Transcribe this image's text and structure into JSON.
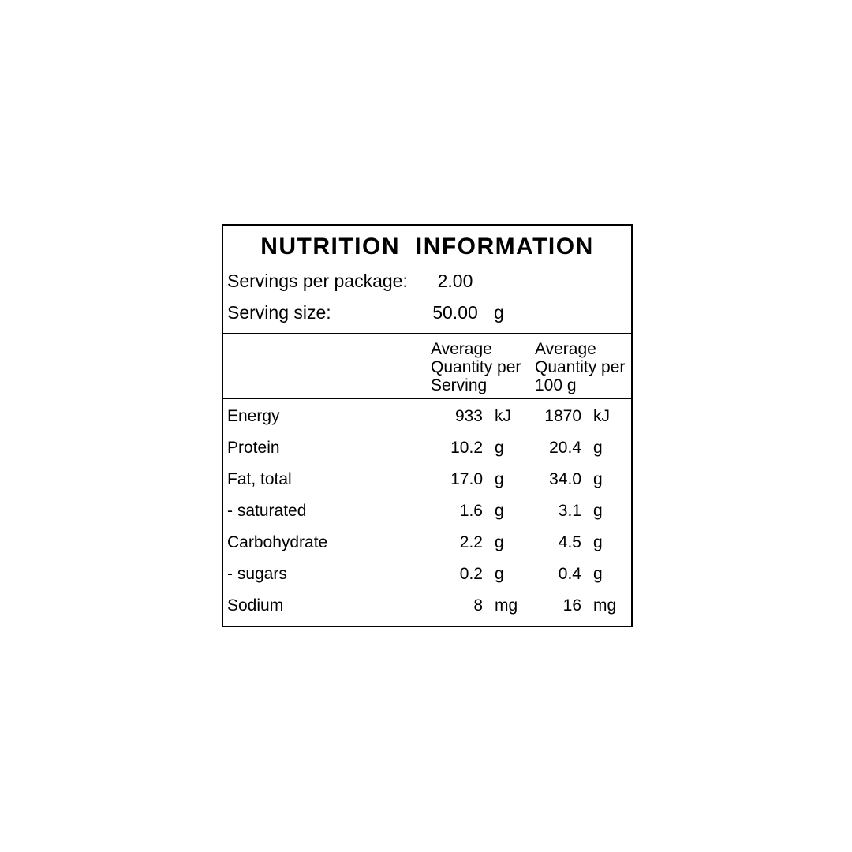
{
  "panel": {
    "title": "NUTRITION INFORMATION",
    "servings_per_package": {
      "label": "Servings per package:",
      "value": "2.00",
      "unit": ""
    },
    "serving_size": {
      "label": "Serving size:",
      "value": "50.00",
      "unit": "g"
    },
    "column_headers": {
      "per_serving": {
        "lines": [
          "Average",
          "Quantity per",
          "Serving"
        ]
      },
      "per_100g": {
        "lines": [
          "Average",
          "Quantity per",
          "100 g"
        ]
      }
    },
    "nutrients": [
      {
        "name": "Energy",
        "per_serving": "933",
        "per_serving_unit": "kJ",
        "per_100g": "1870",
        "per_100g_unit": "kJ"
      },
      {
        "name": "Protein",
        "per_serving": "10.2",
        "per_serving_unit": "g",
        "per_100g": "20.4",
        "per_100g_unit": "g"
      },
      {
        "name": "Fat, total",
        "per_serving": "17.0",
        "per_serving_unit": "g",
        "per_100g": "34.0",
        "per_100g_unit": "g"
      },
      {
        "name": "- saturated",
        "per_serving": "1.6",
        "per_serving_unit": "g",
        "per_100g": "3.1",
        "per_100g_unit": "g"
      },
      {
        "name": "Carbohydrate",
        "per_serving": "2.2",
        "per_serving_unit": "g",
        "per_100g": "4.5",
        "per_100g_unit": "g"
      },
      {
        "name": "- sugars",
        "per_serving": "0.2",
        "per_serving_unit": "g",
        "per_100g": "0.4",
        "per_100g_unit": "g"
      },
      {
        "name": "Sodium",
        "per_serving": "8",
        "per_serving_unit": "mg",
        "per_100g": "16",
        "per_100g_unit": "mg"
      }
    ],
    "colors": {
      "text": "#000000",
      "border": "#000000",
      "background": "#ffffff"
    }
  }
}
